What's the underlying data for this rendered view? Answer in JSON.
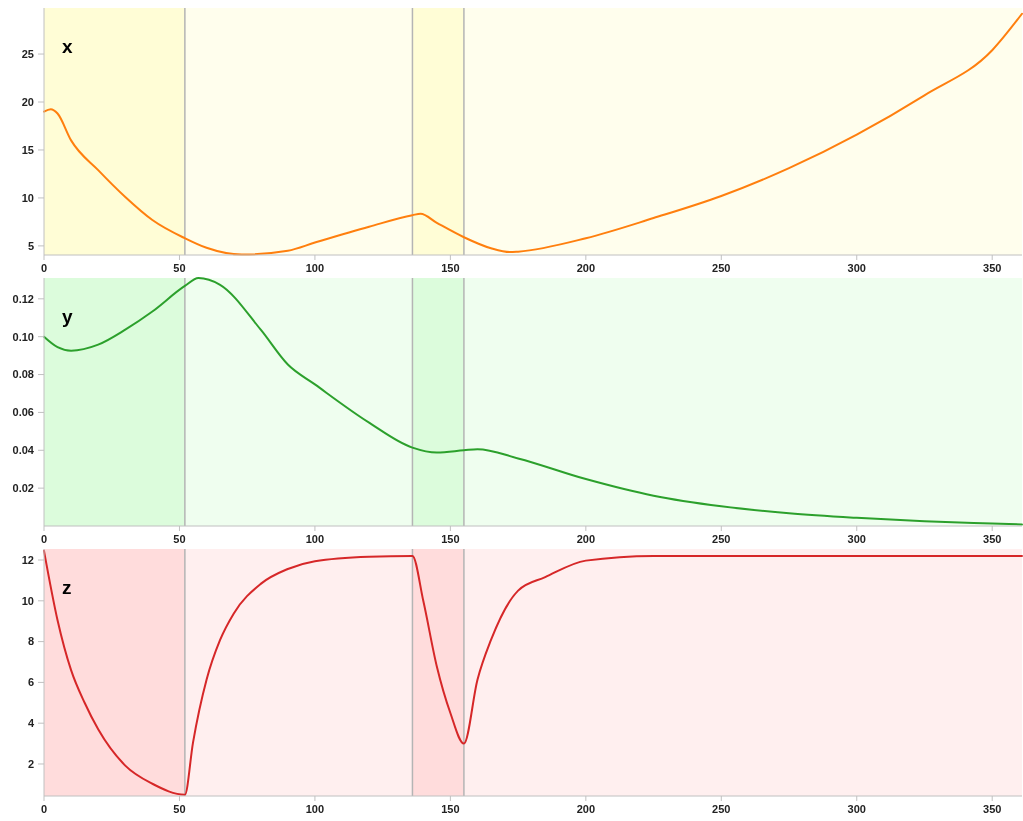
{
  "chart_data": [
    {
      "type": "line",
      "title": "x",
      "x": [
        0,
        2.5,
        5,
        10,
        20,
        30,
        40,
        52,
        60,
        73,
        90,
        100,
        120,
        136,
        139,
        145,
        155,
        165,
        172,
        175,
        200,
        225,
        250,
        275,
        300,
        325,
        350,
        361
      ],
      "series": [
        {
          "color": "#ff7f0e",
          "values": [
            19.0,
            19.25,
            18.8,
            16.0,
            12.9,
            10.1,
            7.7,
            5.8,
            4.8,
            4.1,
            4.5,
            5.35,
            7.0,
            8.2,
            8.35,
            7.4,
            5.9,
            4.75,
            4.35,
            4.4,
            5.8,
            7.9,
            10.2,
            13.1,
            16.6,
            20.7,
            25.4,
            29.2
          ]
        }
      ],
      "xlim": [
        0,
        361
      ],
      "xticks": [
        0,
        50,
        100,
        150,
        200,
        250,
        300,
        350
      ],
      "ylim": [
        4.05,
        29.8
      ],
      "yticks": [
        5,
        10,
        15,
        20,
        25
      ],
      "bands": [
        {
          "axis": "x",
          "from": 0,
          "to": 52,
          "color": "#fffdd6"
        },
        {
          "axis": "x",
          "from": 136,
          "to": 155,
          "color": "#fffdd6"
        }
      ],
      "ref_lines": [
        {
          "axis": "x",
          "value": 52,
          "color": "#b4b4b4"
        },
        {
          "axis": "x",
          "value": 136,
          "color": "#b4b4b4"
        },
        {
          "axis": "x",
          "value": 155,
          "color": "#b4b4b4"
        }
      ]
    },
    {
      "type": "line",
      "title": "y",
      "x": [
        0,
        5,
        10,
        20,
        30,
        40,
        52,
        57,
        65,
        80,
        90,
        100,
        120,
        136,
        145,
        155,
        160,
        175,
        200,
        225,
        250,
        275,
        300,
        325,
        350,
        361
      ],
      "series": [
        {
          "color": "#2ca02c",
          "values": [
            0.1,
            0.0945,
            0.0926,
            0.0958,
            0.1037,
            0.1133,
            0.1268,
            0.131,
            0.1274,
            0.1037,
            0.0853,
            0.0748,
            0.0546,
            0.0414,
            0.0388,
            0.04,
            0.0406,
            0.0357,
            0.0248,
            0.016,
            0.0104,
            0.0067,
            0.0043,
            0.0025,
            0.0013,
            0.0008
          ]
        }
      ],
      "xlim": [
        0,
        361
      ],
      "xticks": [
        0,
        50,
        100,
        150,
        200,
        250,
        300,
        350
      ],
      "ylim": [
        0,
        0.131
      ],
      "yticks": [
        {
          "value": 0.02,
          "label": "0.02"
        },
        {
          "value": 0.04,
          "label": "0.04"
        },
        {
          "value": 0.06,
          "label": "0.06"
        },
        {
          "value": 0.08,
          "label": "0.08"
        },
        {
          "value": 0.1,
          "label": "0.10"
        },
        {
          "value": 0.12,
          "label": "0.12"
        }
      ],
      "bands": [
        {
          "axis": "x",
          "from": 0,
          "to": 52,
          "color": "#dcfcdc"
        },
        {
          "axis": "x",
          "from": 136,
          "to": 155,
          "color": "#dcfcdc"
        }
      ],
      "ref_lines": [
        {
          "axis": "x",
          "value": 52,
          "color": "#b4b4b4"
        },
        {
          "axis": "x",
          "value": 136,
          "color": "#b4b4b4"
        },
        {
          "axis": "x",
          "value": 155,
          "color": "#b4b4b4"
        }
      ]
    },
    {
      "type": "line",
      "title": "z",
      "x": [
        0,
        5,
        10,
        15,
        20,
        30,
        40,
        52,
        55,
        60,
        65,
        70,
        80,
        90,
        100,
        120,
        136,
        140,
        145,
        150,
        155,
        160,
        165,
        175,
        185,
        200,
        225,
        361
      ],
      "series": [
        {
          "color": "#d62728",
          "values": [
            12.45,
            9.05,
            6.6,
            5.0,
            3.7,
            1.92,
            1.03,
            0.49,
            3.05,
            6.13,
            8.08,
            9.37,
            10.83,
            11.56,
            11.94,
            12.16,
            12.2,
            10.0,
            6.78,
            4.5,
            3.0,
            6.13,
            8.08,
            10.5,
            11.16,
            11.97,
            12.2,
            12.2
          ]
        }
      ],
      "xlim": [
        0,
        361
      ],
      "xticks": [
        0,
        50,
        100,
        150,
        200,
        250,
        300,
        350
      ],
      "ylim": [
        0.43,
        12.54
      ],
      "yticks": [
        2,
        4,
        6,
        8,
        10,
        12
      ],
      "bands": [
        {
          "axis": "x",
          "from": 0,
          "to": 52,
          "color": "#ffdcdc"
        },
        {
          "axis": "x",
          "from": 136,
          "to": 155,
          "color": "#ffdcdc"
        }
      ],
      "ref_lines": [
        {
          "axis": "x",
          "value": 52,
          "color": "#b4b4b4"
        },
        {
          "axis": "x",
          "value": 136,
          "color": "#b4b4b4"
        },
        {
          "axis": "x",
          "value": 155,
          "color": "#b4b4b4"
        }
      ]
    }
  ]
}
